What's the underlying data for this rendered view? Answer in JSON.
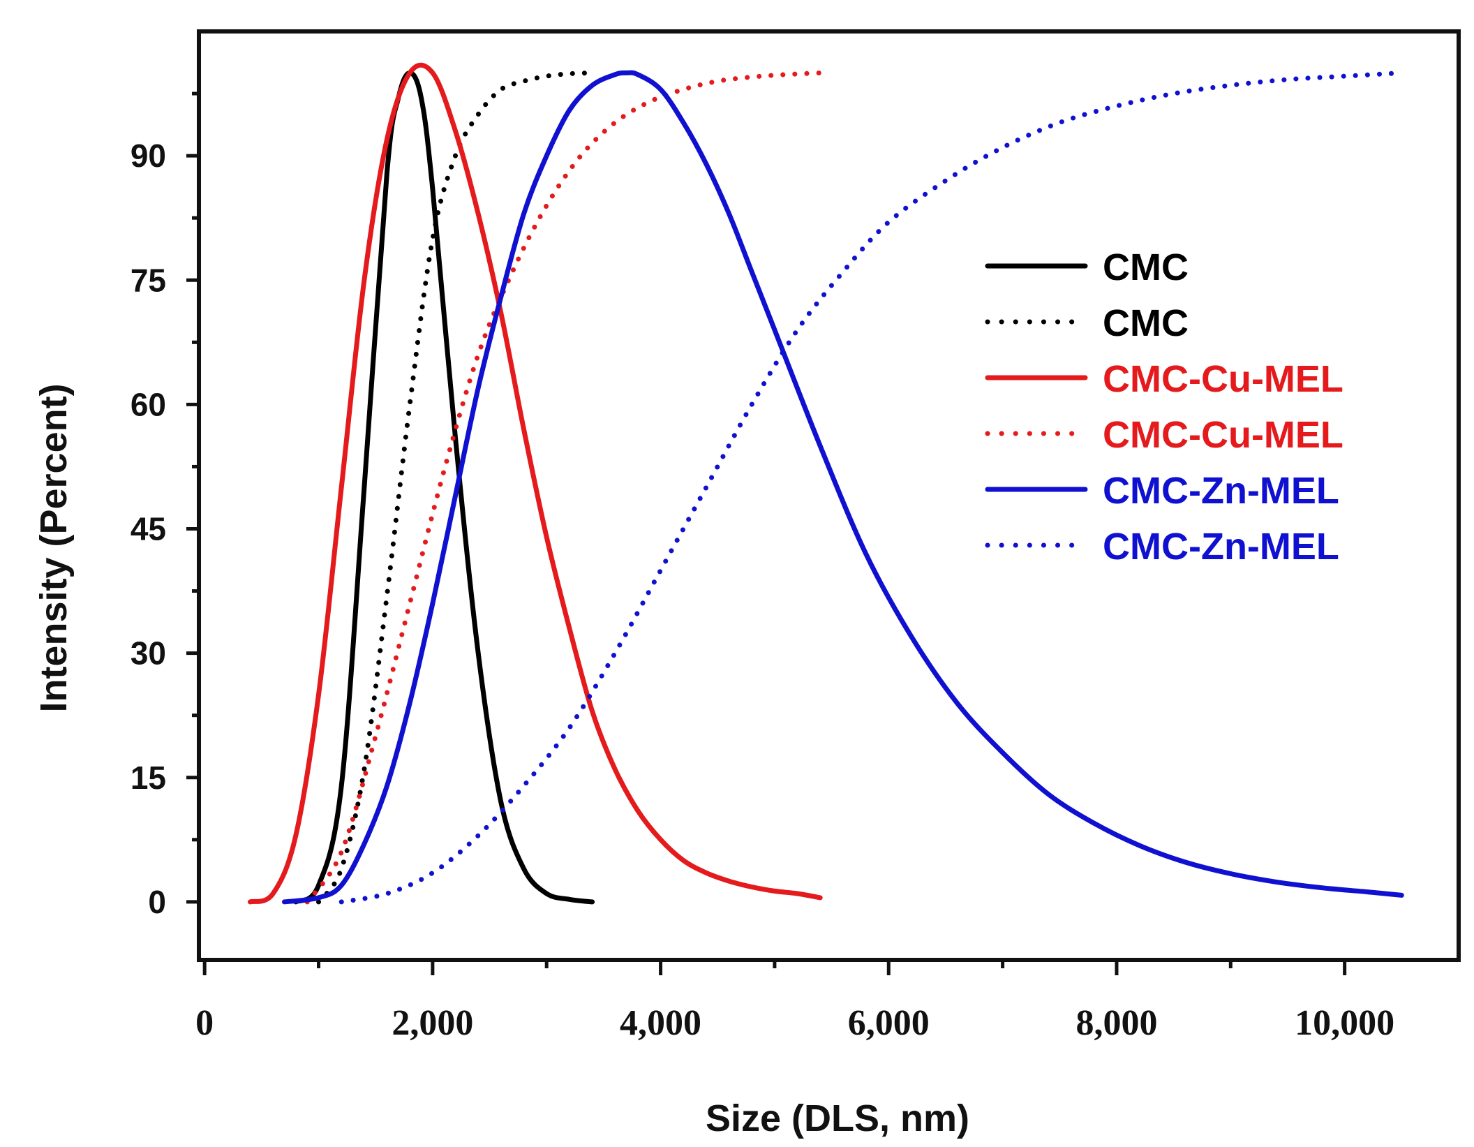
{
  "chart_data": {
    "type": "line",
    "title": "",
    "xlabel": "Size (DLS, nm)",
    "ylabel": "Intensity (Percent)",
    "xlim": [
      -50,
      11000
    ],
    "ylim": [
      -7,
      105
    ],
    "xticks": [
      0,
      2000,
      4000,
      6000,
      8000,
      10000
    ],
    "xtick_labels": [
      "0",
      "2,000",
      "4,000",
      "6,000",
      "8,000",
      "10,000"
    ],
    "yticks": [
      0,
      15,
      30,
      45,
      60,
      75,
      90
    ],
    "ytick_labels": [
      "0",
      "15",
      "30",
      "45",
      "60",
      "75",
      "90"
    ],
    "grid": false,
    "legend_position": "right",
    "series": [
      {
        "name": "CMC",
        "style": "solid",
        "color": "#000000",
        "x": [
          800,
          1000,
          1200,
          1400,
          1600,
          1700,
          1800,
          1900,
          2000,
          2200,
          2400,
          2600,
          2800,
          3000,
          3200,
          3400
        ],
        "y": [
          0,
          2,
          14,
          50,
          88,
          97,
          100,
          97,
          86,
          56,
          30,
          12,
          4,
          1,
          0.3,
          0
        ]
      },
      {
        "name": "CMC",
        "style": "dotted",
        "color": "#000000",
        "x": [
          1000,
          1200,
          1400,
          1600,
          1800,
          2000,
          2200,
          2400,
          2600,
          2800,
          3000,
          3200,
          3400
        ],
        "y": [
          0,
          4,
          16,
          37,
          60,
          80,
          90,
          95,
          98,
          99,
          99.6,
          99.9,
          100
        ]
      },
      {
        "name": "CMC-Cu-MEL",
        "style": "solid",
        "color": "#e41a1c",
        "x": [
          400,
          600,
          800,
          1000,
          1200,
          1400,
          1600,
          1800,
          2000,
          2200,
          2400,
          2600,
          2800,
          3000,
          3200,
          3400,
          3600,
          3800,
          4000,
          4200,
          4400,
          4600,
          4800,
          5000,
          5200,
          5400
        ],
        "y": [
          0,
          1,
          8,
          25,
          50,
          75,
          92,
          100,
          100,
          93,
          83,
          71,
          57,
          44,
          33,
          23,
          16,
          11,
          7.5,
          5,
          3.5,
          2.5,
          1.8,
          1.3,
          1,
          0.5
        ]
      },
      {
        "name": "CMC-Cu-MEL",
        "style": "dotted",
        "color": "#e41a1c",
        "x": [
          900,
          1200,
          1500,
          1800,
          2100,
          2400,
          2700,
          3000,
          3300,
          3600,
          3900,
          4200,
          4500,
          4800,
          5100,
          5400
        ],
        "y": [
          0,
          6,
          20,
          36,
          52,
          66,
          76,
          84,
          90,
          94,
          96.5,
          98,
          99,
          99.5,
          99.8,
          100
        ]
      },
      {
        "name": "CMC-Zn-MEL",
        "style": "solid",
        "color": "#1010d0",
        "x": [
          700,
          1000,
          1200,
          1400,
          1600,
          1800,
          2000,
          2200,
          2400,
          2600,
          2800,
          3000,
          3200,
          3400,
          3600,
          3700,
          3800,
          4000,
          4200,
          4400,
          4600,
          4800,
          5000,
          5400,
          5800,
          6200,
          6600,
          7000,
          7400,
          7800,
          8200,
          8600,
          9000,
          9400,
          9800,
          10200,
          10500
        ],
        "y": [
          0,
          0.5,
          2,
          7,
          14,
          24,
          36,
          49,
          62,
          73,
          83,
          90,
          95.5,
          98.5,
          99.8,
          100,
          99.8,
          98,
          94,
          89,
          83,
          76,
          69,
          55,
          42,
          32,
          24,
          18,
          13,
          9.5,
          6.8,
          4.8,
          3.4,
          2.4,
          1.7,
          1.2,
          0.8
        ]
      },
      {
        "name": "CMC-Zn-MEL",
        "style": "dotted",
        "color": "#1010d0",
        "x": [
          1200,
          1600,
          2000,
          2400,
          2800,
          3200,
          3600,
          4000,
          4400,
          4800,
          5200,
          5600,
          6000,
          6500,
          7000,
          7500,
          8000,
          8500,
          9000,
          9500,
          10000,
          10500
        ],
        "y": [
          0,
          1,
          3.5,
          8,
          14,
          21,
          30,
          40,
          50,
          60,
          69,
          76,
          82,
          87,
          91,
          94,
          96,
          97.5,
          98.5,
          99.2,
          99.6,
          100
        ]
      }
    ]
  }
}
